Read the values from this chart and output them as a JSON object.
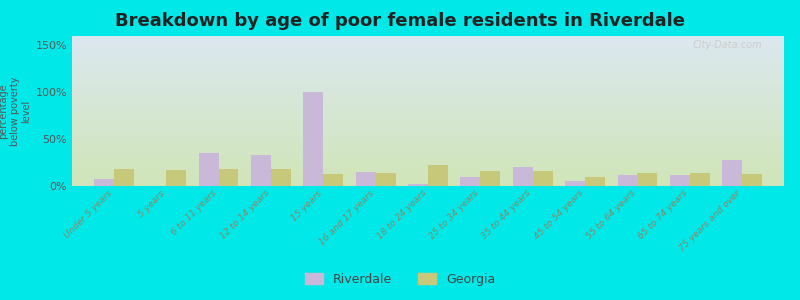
{
  "title": "Breakdown by age of poor female residents in Riverdale",
  "ylabel": "percentage\nbelow poverty\nlevel",
  "categories": [
    "Under 5 years",
    "5 years",
    "6 to 11 years",
    "12 to 14 years",
    "15 years",
    "16 and 17 years",
    "18 to 24 years",
    "25 to 34 years",
    "35 to 44 years",
    "45 to 54 years",
    "55 to 64 years",
    "65 to 74 years",
    "75 years and over"
  ],
  "riverdale": [
    8,
    0,
    35,
    33,
    100,
    15,
    2,
    10,
    20,
    5,
    12,
    12,
    28
  ],
  "georgia": [
    18,
    17,
    18,
    18,
    13,
    14,
    22,
    16,
    16,
    10,
    14,
    14,
    13
  ],
  "riverdale_color": "#c9b8d8",
  "georgia_color": "#c8c87a",
  "background_top": "#dce8f0",
  "background_bottom": "#d0e5b8",
  "bg_outer": "#00e8e8",
  "yticks": [
    0,
    50,
    100,
    150
  ],
  "ylim": [
    0,
    160
  ],
  "title_fontsize": 13,
  "bar_width": 0.38,
  "legend_riverdale": "Riverdale",
  "legend_georgia": "Georgia"
}
